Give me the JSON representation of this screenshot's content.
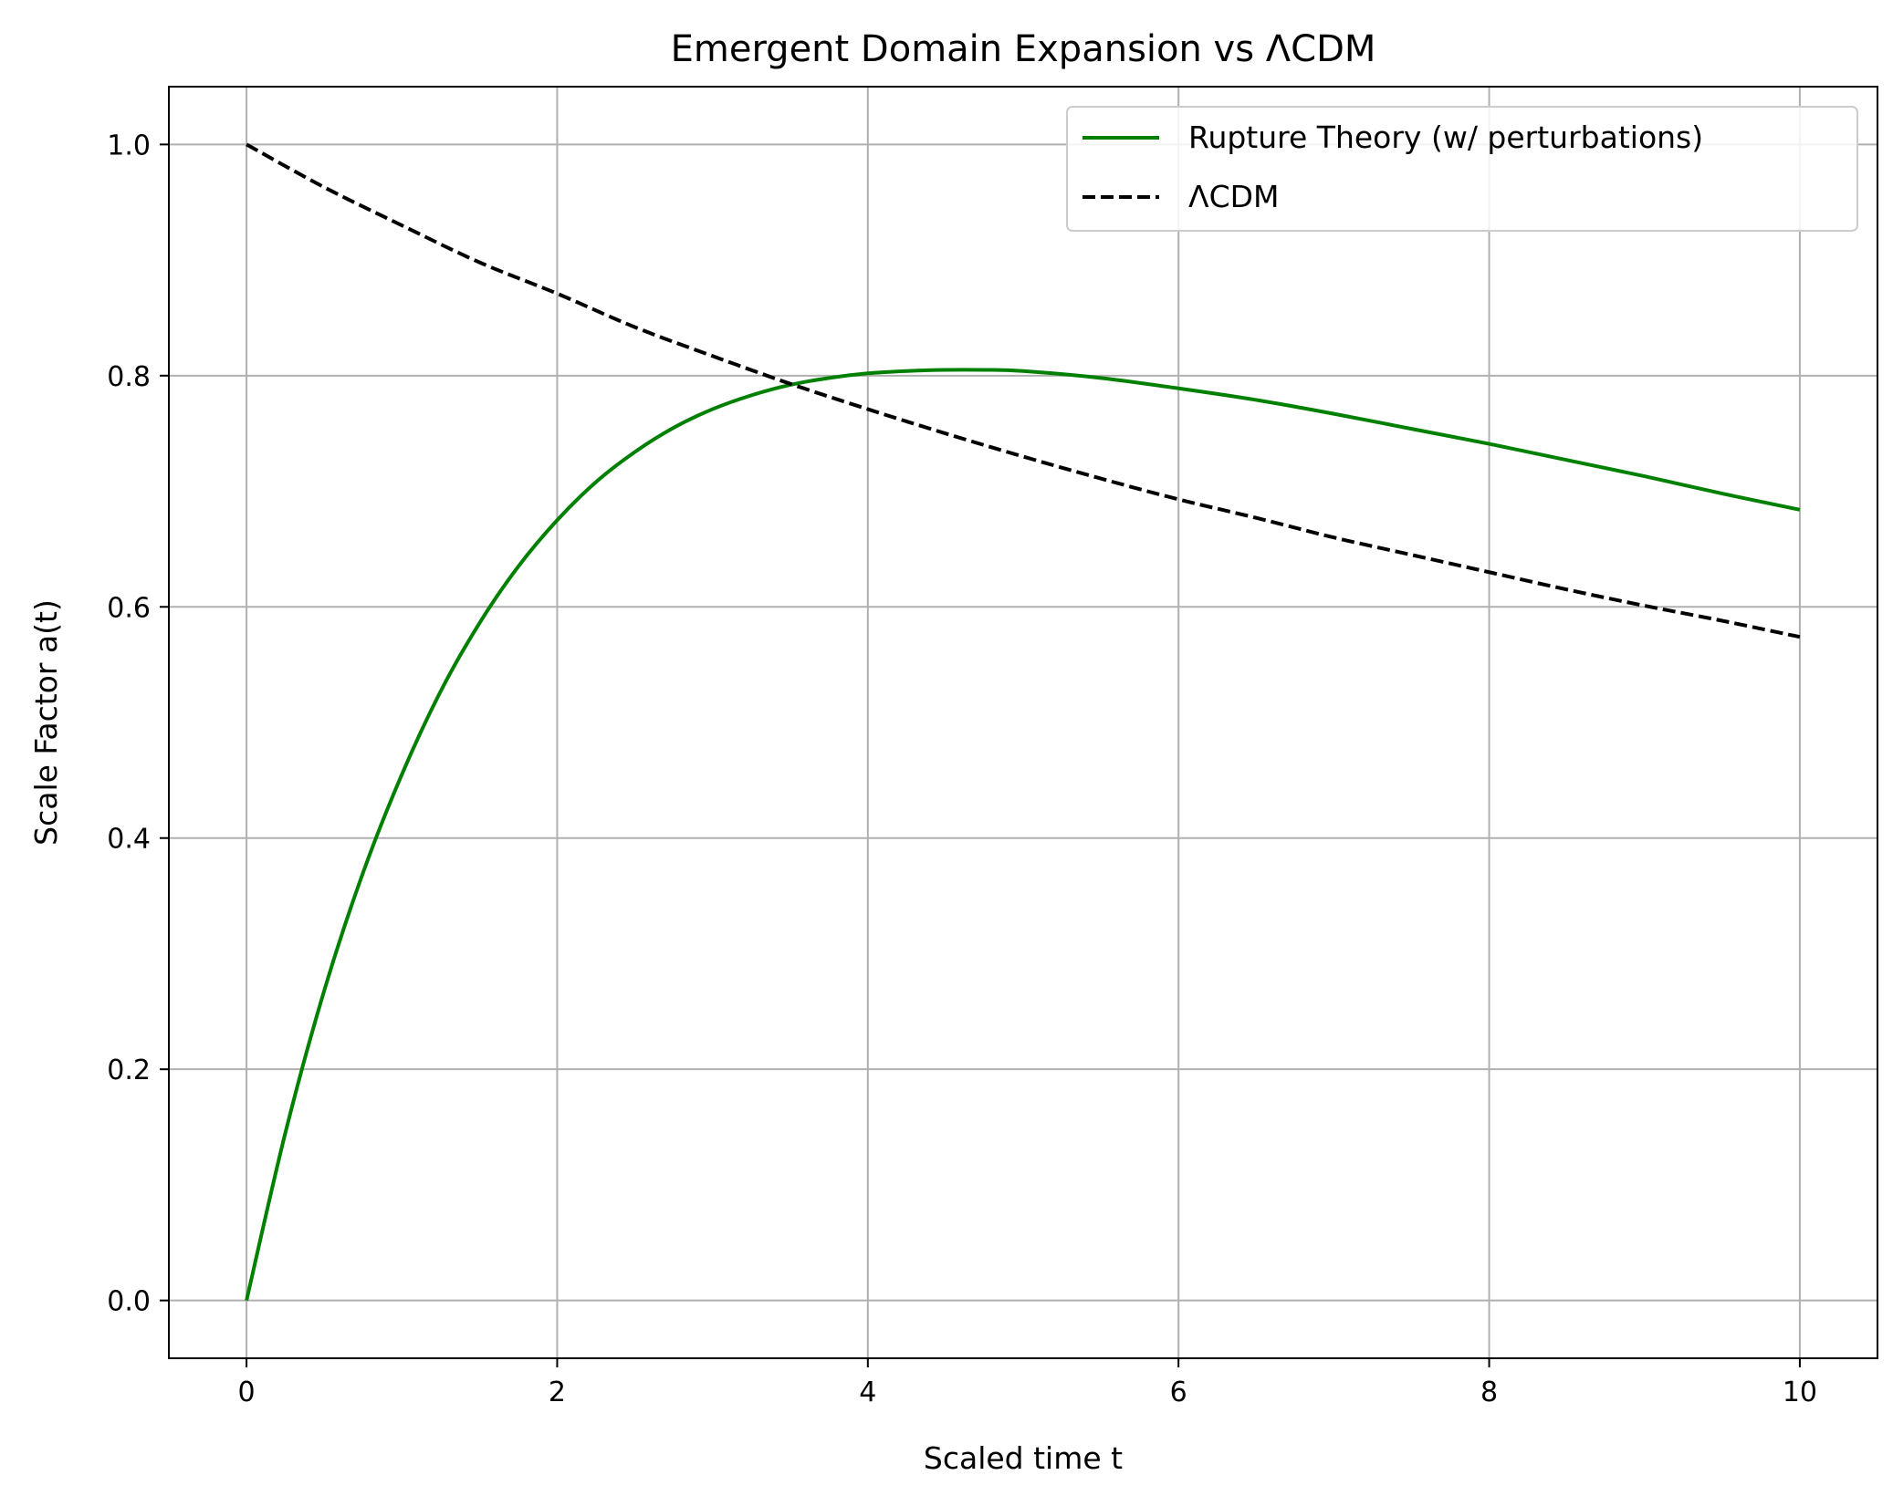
{
  "chart_data": {
    "type": "line",
    "title": "Emergent Domain Expansion vs ΛCDM",
    "xlabel": "Scaled time t",
    "ylabel": "Scale Factor a(t)",
    "xlim": [
      -0.5,
      10.5
    ],
    "ylim": [
      -0.05,
      1.05
    ],
    "x_ticks": [
      0,
      2,
      4,
      6,
      8,
      10
    ],
    "x_tick_labels": [
      "0",
      "2",
      "4",
      "6",
      "8",
      "10"
    ],
    "y_ticks": [
      0.0,
      0.2,
      0.4,
      0.6,
      0.8,
      1.0
    ],
    "y_tick_labels": [
      "0.0",
      "0.2",
      "0.4",
      "0.6",
      "0.8",
      "1.0"
    ],
    "grid": true,
    "legend_position": "top-right",
    "series": [
      {
        "name": "Rupture Theory (w/ perturbations)",
        "color": "#008000",
        "style": "solid",
        "x": [
          0,
          0.25,
          0.5,
          0.75,
          1.0,
          1.25,
          1.5,
          1.75,
          2.0,
          2.25,
          2.5,
          2.75,
          3.0,
          3.25,
          3.5,
          3.75,
          4.0,
          4.25,
          4.5,
          4.75,
          5.0,
          5.5,
          6.0,
          6.5,
          7.0,
          7.5,
          8.0,
          8.5,
          9.0,
          9.5,
          10.0
        ],
        "y": [
          0.0,
          0.145,
          0.268,
          0.37,
          0.455,
          0.527,
          0.586,
          0.635,
          0.675,
          0.708,
          0.734,
          0.755,
          0.771,
          0.783,
          0.792,
          0.798,
          0.802,
          0.804,
          0.805,
          0.805,
          0.804,
          0.798,
          0.789,
          0.779,
          0.767,
          0.754,
          0.741,
          0.727,
          0.713,
          0.698,
          0.684
        ]
      },
      {
        "name": "ΛCDM",
        "color": "#000000",
        "style": "dashed",
        "x": [
          0,
          0.5,
          1,
          1.5,
          2,
          2.5,
          3,
          3.5,
          4,
          4.5,
          5,
          5.5,
          6,
          6.5,
          7,
          7.5,
          8,
          8.5,
          9,
          9.5,
          10
        ],
        "y": [
          1.0,
          0.963,
          0.93,
          0.898,
          0.871,
          0.842,
          0.817,
          0.793,
          0.771,
          0.75,
          0.73,
          0.711,
          0.693,
          0.677,
          0.66,
          0.645,
          0.63,
          0.615,
          0.601,
          0.588,
          0.574
        ]
      }
    ]
  }
}
